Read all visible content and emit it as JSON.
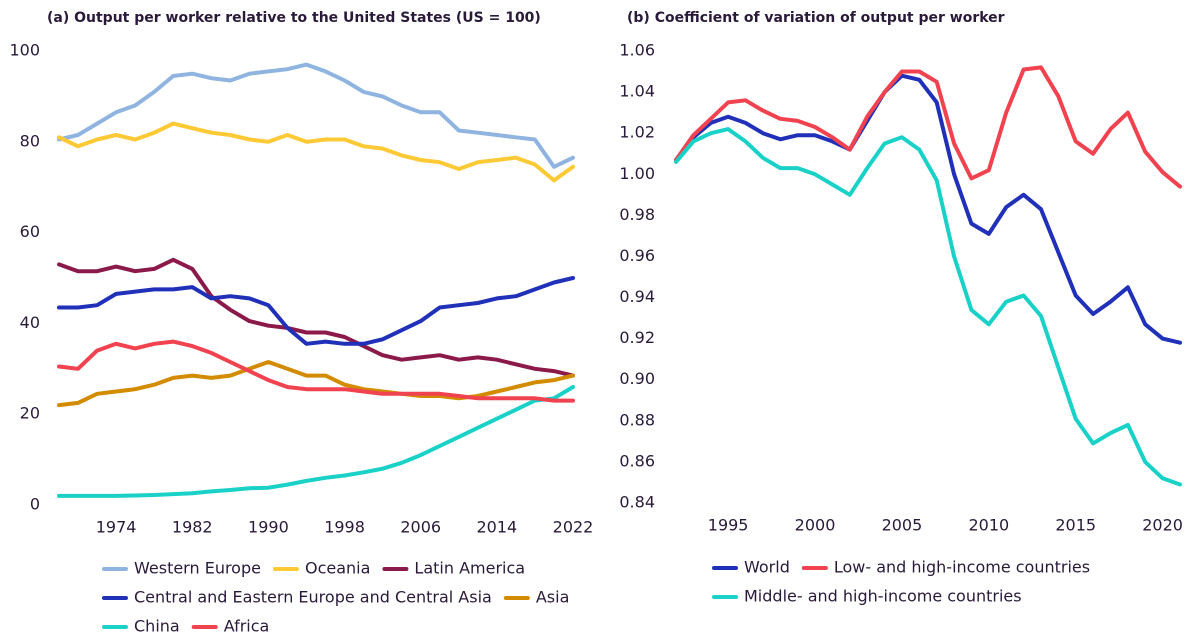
{
  "chart_data": [
    {
      "type": "line",
      "title": "(a) Output per worker relative to the United States (US = 100)",
      "x": [
        1968,
        1970,
        1972,
        1974,
        1976,
        1978,
        1980,
        1982,
        1984,
        1986,
        1988,
        1990,
        1992,
        1994,
        1996,
        1998,
        2000,
        2002,
        2004,
        2006,
        2008,
        2010,
        2012,
        2014,
        2016,
        2018,
        2020,
        2022
      ],
      "xlim": [
        1968,
        2022
      ],
      "xticks": [
        1974,
        1982,
        1990,
        1998,
        2006,
        2014,
        2022
      ],
      "ylim": [
        0,
        100
      ],
      "yticks": [
        0,
        20,
        40,
        60,
        80,
        100
      ],
      "series": [
        {
          "name": "Western Europe",
          "color": "#8fb4e0",
          "values": [
            80.5,
            81.5,
            84,
            86.5,
            88,
            91,
            94.5,
            95,
            94,
            93.5,
            95,
            95.5,
            96,
            97,
            95.5,
            93.5,
            91,
            90,
            88,
            86.5,
            86.5,
            82.5,
            82,
            81.5,
            81,
            80.5,
            74.5,
            76.5
          ]
        },
        {
          "name": "Oceania",
          "color": "#fdc935",
          "values": [
            81,
            79,
            80.5,
            81.5,
            80.5,
            82,
            84,
            83,
            82,
            81.5,
            80.5,
            80,
            81.5,
            80,
            80.5,
            80.5,
            79,
            78.5,
            77,
            76,
            75.5,
            74,
            75.5,
            76,
            76.5,
            75,
            71.5,
            74.5
          ]
        },
        {
          "name": "Latin America",
          "color": "#8b1a4a",
          "values": [
            53,
            51.5,
            51.5,
            52.5,
            51.5,
            52,
            54,
            52,
            46,
            43,
            40.5,
            39.5,
            39,
            38,
            38,
            37,
            35,
            33,
            32,
            32.5,
            33,
            32,
            32.5,
            32,
            31,
            30,
            29.5,
            28.5
          ]
        },
        {
          "name": "Central and Eastern Europe and Central Asia",
          "color": "#2030b8",
          "values": [
            43.5,
            43.5,
            44,
            46.5,
            47,
            47.5,
            47.5,
            48,
            45.5,
            46,
            45.5,
            44,
            39,
            35.5,
            36,
            35.5,
            35.5,
            36.5,
            38.5,
            40.5,
            43.5,
            44,
            44.5,
            45.5,
            46,
            47.5,
            49,
            50
          ]
        },
        {
          "name": "Asia",
          "color": "#d38c00",
          "values": [
            22,
            22.5,
            24.5,
            25,
            25.5,
            26.5,
            28,
            28.5,
            28,
            28.5,
            30,
            31.5,
            30,
            28.5,
            28.5,
            26.5,
            25.5,
            25,
            24.5,
            24,
            24,
            23.5,
            24,
            25,
            26,
            27,
            27.5,
            28.5
          ]
        },
        {
          "name": "China",
          "color": "#1ad1c8",
          "values": [
            2,
            2,
            2,
            2,
            2.1,
            2.2,
            2.4,
            2.6,
            3,
            3.3,
            3.7,
            3.8,
            4.5,
            5.3,
            6,
            6.5,
            7.2,
            8,
            9.3,
            11,
            13,
            15,
            17,
            19,
            21,
            23,
            23.5,
            26
          ]
        },
        {
          "name": "Africa",
          "color": "#f0424f",
          "values": [
            30.5,
            30,
            34,
            35.5,
            34.5,
            35.5,
            36,
            35,
            33.5,
            31.5,
            29.5,
            27.5,
            26,
            25.5,
            25.5,
            25.5,
            25,
            24.5,
            24.5,
            24.5,
            24.5,
            24,
            23.5,
            23.5,
            23.5,
            23.5,
            23,
            23
          ]
        }
      ]
    },
    {
      "type": "line",
      "title": "(b) Coefficient of variation of output per worker",
      "x": [
        1992,
        1993,
        1994,
        1995,
        1996,
        1997,
        1998,
        1999,
        2000,
        2001,
        2002,
        2003,
        2004,
        2005,
        2006,
        2007,
        2008,
        2009,
        2010,
        2011,
        2012,
        2013,
        2014,
        2015,
        2016,
        2017,
        2018,
        2019,
        2020,
        2021
      ],
      "xlim": [
        1992,
        2021
      ],
      "xticks": [
        1995,
        2000,
        2005,
        2010,
        2015,
        2020
      ],
      "ylim": [
        0.84,
        1.06
      ],
      "yticks": [
        0.84,
        0.86,
        0.88,
        {
          "value": 0.9,
          "label": "0.90"
        },
        0.92,
        0.94,
        0.96,
        0.98,
        {
          "value": 1,
          "label": "1.00"
        },
        1.02,
        1.04,
        1.06
      ],
      "series": [
        {
          "name": "World",
          "color": "#2030b8",
          "values": [
            1.007,
            1.018,
            1.025,
            1.028,
            1.025,
            1.02,
            1.017,
            1.019,
            1.019,
            1.016,
            1.012,
            1.026,
            1.04,
            1.048,
            1.046,
            1.035,
            1.0,
            0.976,
            0.971,
            0.984,
            0.99,
            0.983,
            0.962,
            0.941,
            0.932,
            0.938,
            0.945,
            0.927,
            0.92,
            0.918
          ]
        },
        {
          "name": "Low- and high-income countries",
          "color": "#f0424f",
          "values": [
            1.007,
            1.019,
            1.027,
            1.035,
            1.036,
            1.031,
            1.027,
            1.026,
            1.023,
            1.018,
            1.012,
            1.028,
            1.04,
            1.05,
            1.05,
            1.045,
            1.015,
            0.998,
            1.002,
            1.03,
            1.051,
            1.052,
            1.038,
            1.016,
            1.01,
            1.022,
            1.03,
            1.011,
            1.001,
            0.994
          ]
        },
        {
          "name": "Middle- and high-income countries",
          "color": "#1ad1c8",
          "values": [
            1.006,
            1.016,
            1.02,
            1.022,
            1.016,
            1.008,
            1.003,
            1.003,
            1.0,
            0.995,
            0.99,
            1.003,
            1.015,
            1.018,
            1.012,
            0.997,
            0.96,
            0.934,
            0.927,
            0.938,
            0.941,
            0.931,
            0.906,
            0.881,
            0.869,
            0.874,
            0.878,
            0.86,
            0.852,
            0.849
          ]
        }
      ]
    }
  ]
}
